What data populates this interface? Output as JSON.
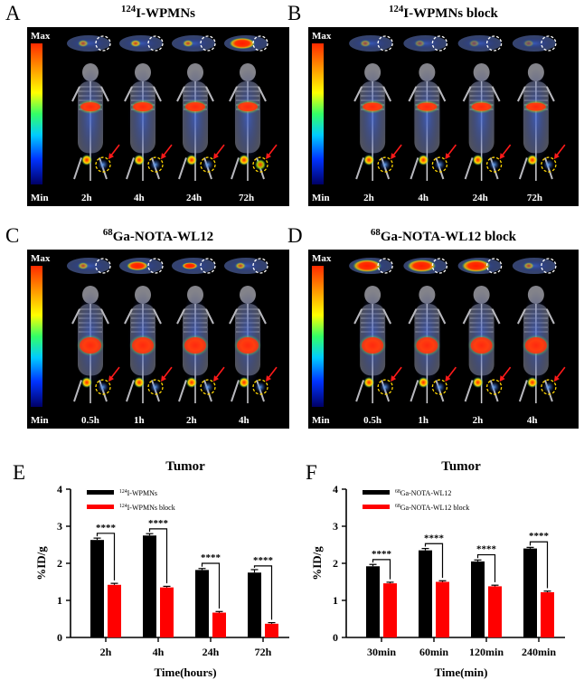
{
  "panels": [
    {
      "letter": "A",
      "iso": "124",
      "name": "I-WPMNs",
      "scale_max": "Max",
      "scale_min": "Min",
      "times": [
        "2h",
        "4h",
        "24h",
        "72h"
      ]
    },
    {
      "letter": "B",
      "iso": "124",
      "name": "I-WPMNs block",
      "scale_max": "Max",
      "scale_min": "Min",
      "times": [
        "2h",
        "4h",
        "24h",
        "72h"
      ]
    },
    {
      "letter": "C",
      "iso": "68",
      "name": "Ga-NOTA-WL12",
      "scale_max": "Max",
      "scale_min": "Min",
      "times": [
        "0.5h",
        "1h",
        "2h",
        "4h"
      ]
    },
    {
      "letter": "D",
      "iso": "68",
      "name": "Ga-NOTA-WL12 block",
      "scale_max": "Max",
      "scale_min": "Min",
      "times": [
        "0.5h",
        "1h",
        "2h",
        "4h"
      ]
    }
  ],
  "colors": {
    "series_a": "#000000",
    "series_b": "#ff0000",
    "background": "#ffffff"
  },
  "chart_data": [
    {
      "letter": "E",
      "type": "bar",
      "title": "Tumor",
      "xlabel": "Time(hours)",
      "ylabel": "%ID/g",
      "ylim": [
        0,
        4
      ],
      "yticks": [
        "0",
        "1",
        "2",
        "3",
        "4"
      ],
      "categories": [
        "2h",
        "4h",
        "24h",
        "72h"
      ],
      "series": [
        {
          "iso": "124",
          "name": "I-WPMNs",
          "values": [
            2.63,
            2.75,
            1.82,
            1.75
          ],
          "errors": [
            0.05,
            0.05,
            0.04,
            0.08
          ]
        },
        {
          "iso": "124",
          "name": "I-WPMNs block",
          "values": [
            1.42,
            1.35,
            0.67,
            0.37
          ],
          "errors": [
            0.04,
            0.03,
            0.03,
            0.03
          ]
        }
      ],
      "significance": [
        "****",
        "****",
        "****",
        "****"
      ]
    },
    {
      "letter": "F",
      "type": "bar",
      "title": "Tumor",
      "xlabel": "Time(min)",
      "ylabel": "%ID/g",
      "ylim": [
        0,
        4
      ],
      "yticks": [
        "0",
        "1",
        "2",
        "3",
        "4"
      ],
      "categories": [
        "30min",
        "60min",
        "120min",
        "240min"
      ],
      "series": [
        {
          "iso": "68",
          "name": "Ga-NOTA-WL12",
          "values": [
            1.92,
            2.35,
            2.05,
            2.4
          ],
          "errors": [
            0.05,
            0.05,
            0.04,
            0.03
          ]
        },
        {
          "iso": "68",
          "name": "Ga-NOTA-WL12 block",
          "values": [
            1.46,
            1.5,
            1.38,
            1.22
          ],
          "errors": [
            0.03,
            0.03,
            0.03,
            0.03
          ]
        }
      ],
      "significance": [
        "****",
        "****",
        "****",
        "****"
      ]
    }
  ]
}
